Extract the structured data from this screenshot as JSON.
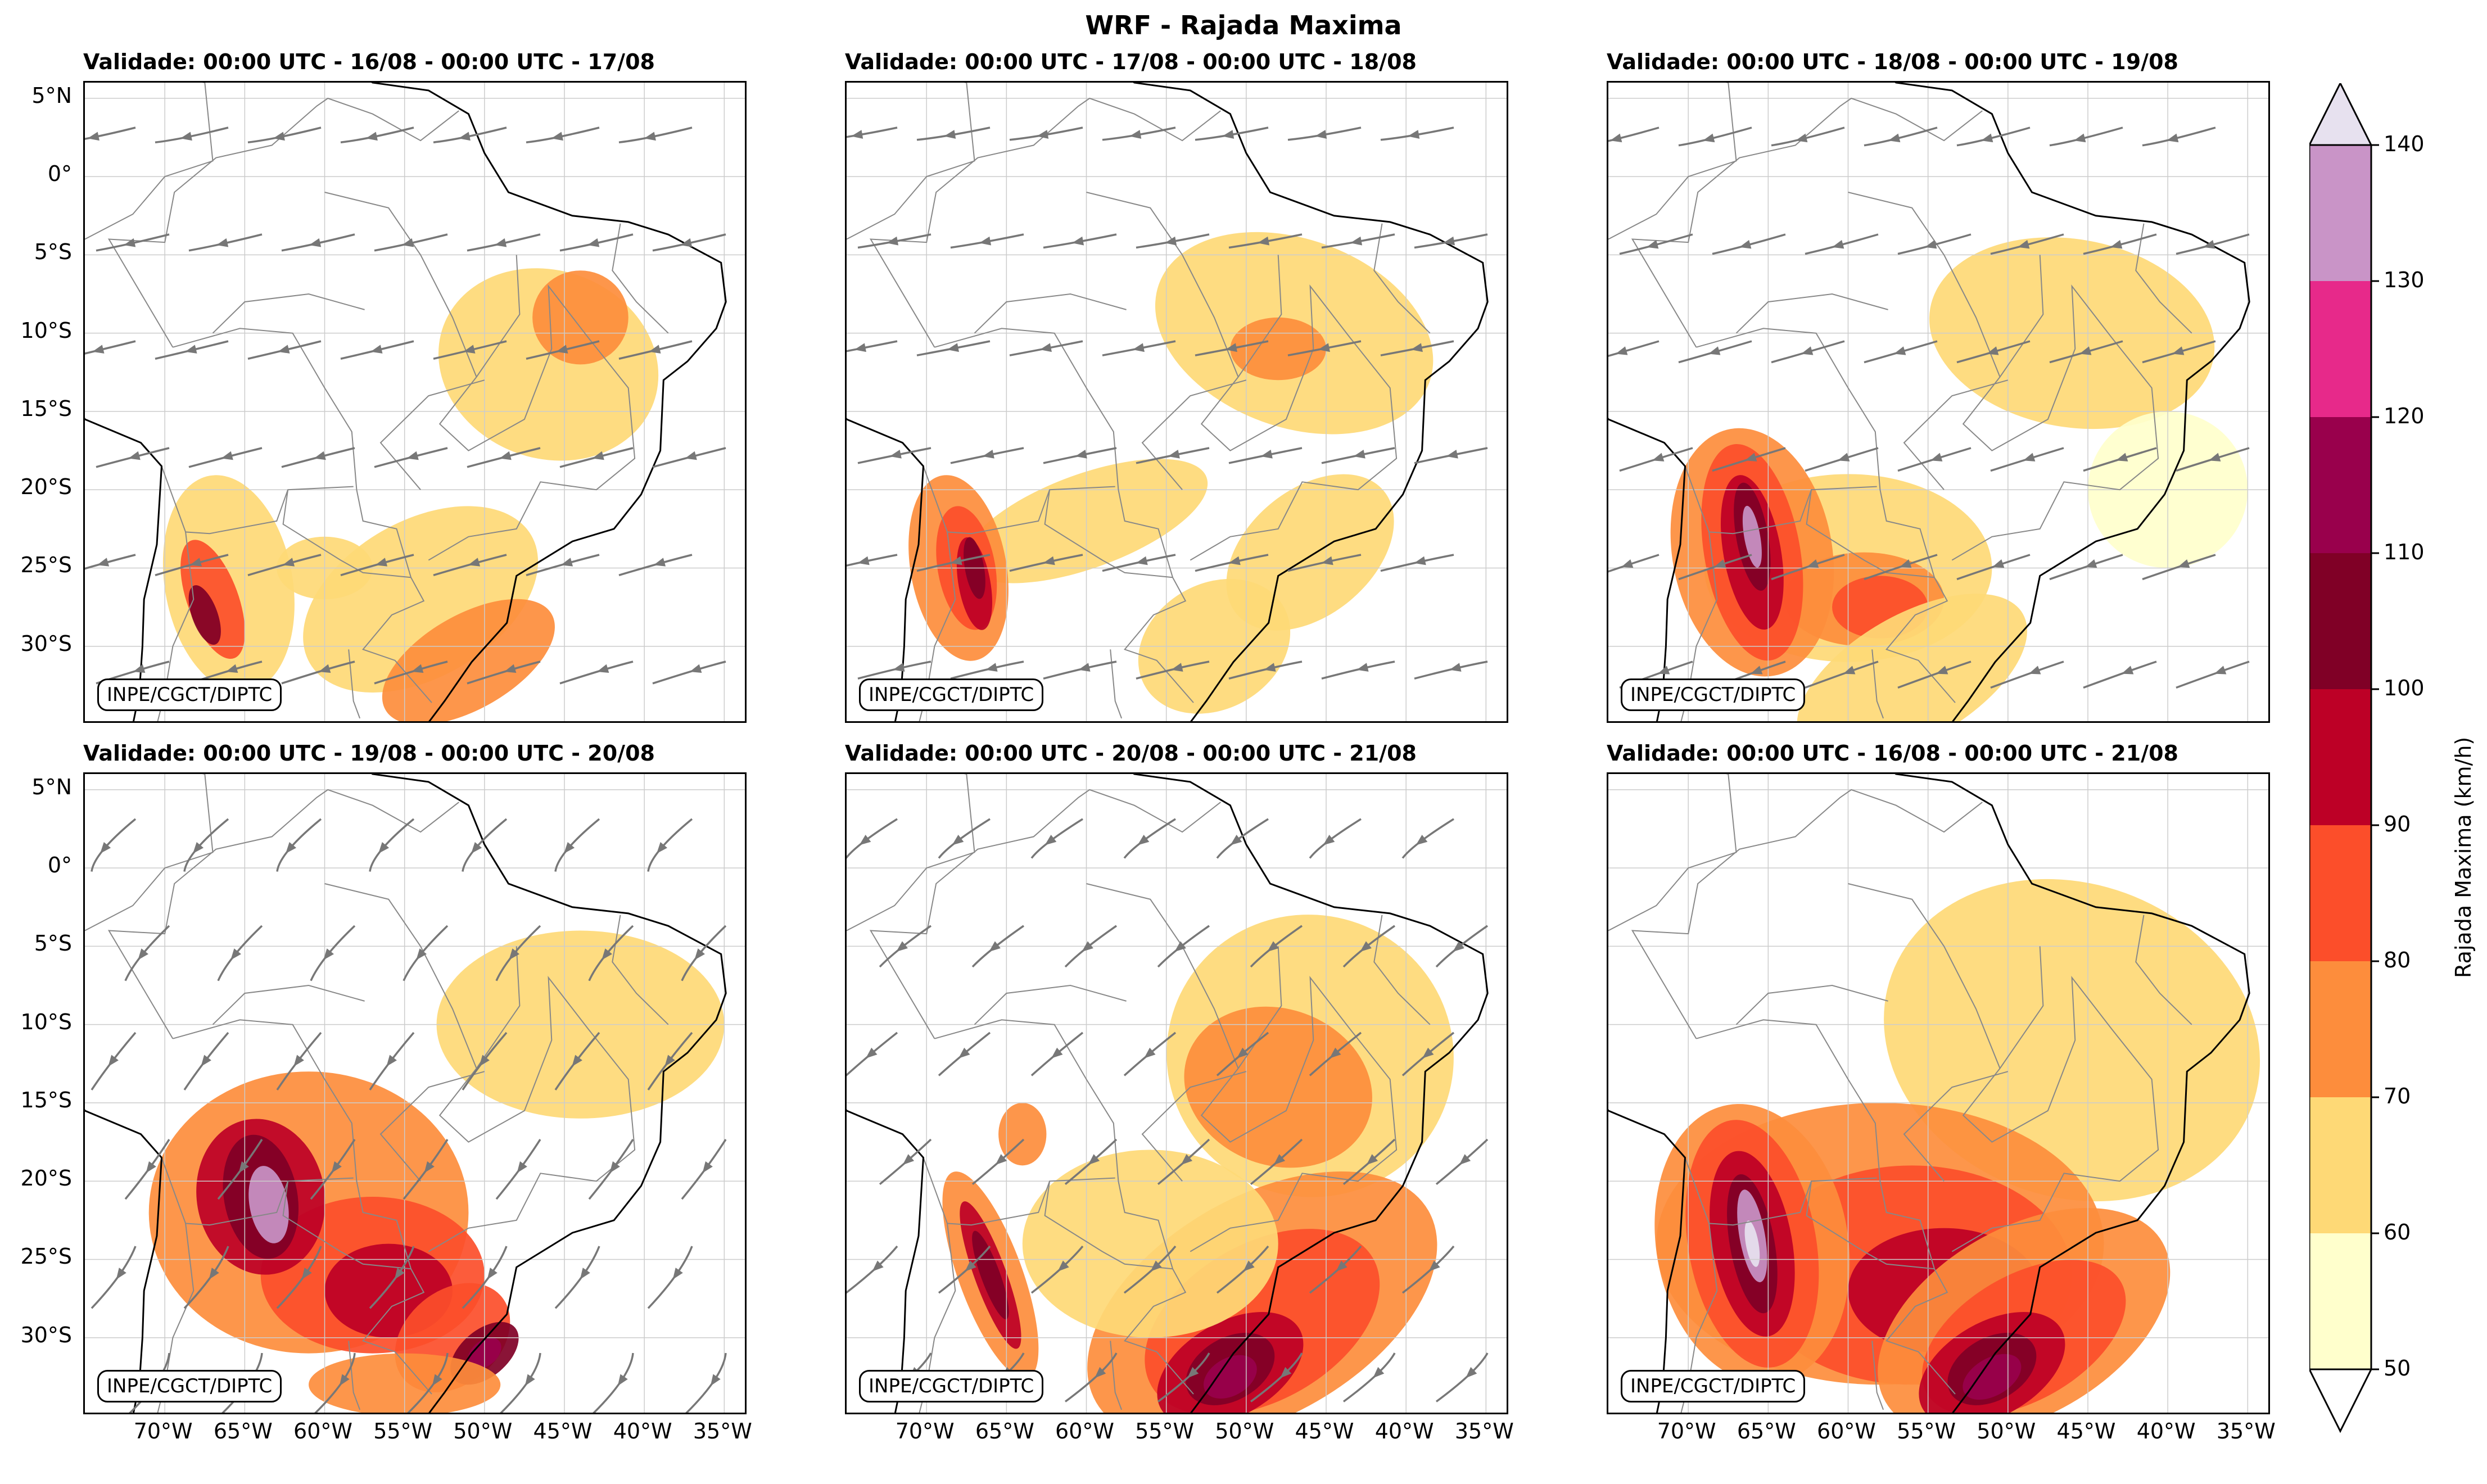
{
  "title": "WRF - Rajada Maxima",
  "credit": "INPE/CGCT/DIPTC",
  "panels": [
    {
      "title": "Validade: 00:00 UTC - 16/08 - 00:00 UTC - 17/08",
      "streamlines": true
    },
    {
      "title": "Validade: 00:00 UTC - 17/08 - 00:00 UTC - 18/08",
      "streamlines": true
    },
    {
      "title": "Validade: 00:00 UTC - 18/08 - 00:00 UTC - 19/08",
      "streamlines": true
    },
    {
      "title": "Validade: 00:00 UTC - 19/08 - 00:00 UTC - 20/08",
      "streamlines": true
    },
    {
      "title": "Validade: 00:00 UTC - 20/08 - 00:00 UTC - 21/08",
      "streamlines": true
    },
    {
      "title": "Validade: 00:00 UTC - 16/08 - 00:00 UTC - 21/08",
      "streamlines": false
    }
  ],
  "lat_ticks": [
    "5°N",
    "0°",
    "5°S",
    "10°S",
    "15°S",
    "20°S",
    "25°S",
    "30°S"
  ],
  "lon_ticks": [
    "70°W",
    "65°W",
    "60°W",
    "55°W",
    "50°W",
    "45°W",
    "40°W",
    "35°W"
  ],
  "colorbar": {
    "label": "Rajada Maxima (km/h)",
    "ticks": [
      "50",
      "60",
      "70",
      "80",
      "90",
      "100",
      "110",
      "120",
      "130",
      "140"
    ],
    "colors": [
      "#ffffcc",
      "#fed976",
      "#fd8d3c",
      "#fc4e2a",
      "#bd0026",
      "#800026",
      "#99004c",
      "#e7298a",
      "#c994c7",
      "#e7e1ef"
    ],
    "under_color": "#ffffff",
    "over_color": "#e7e1ef"
  },
  "colors": {
    "streamline": "#777777",
    "coast": "#000000",
    "border": "#888888",
    "grid": "#cccccc"
  }
}
